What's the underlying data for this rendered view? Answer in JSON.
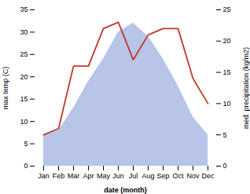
{
  "chart_data": {
    "type": "line",
    "categories": [
      "Jan",
      "Feb",
      "Mar",
      "Apr",
      "May",
      "Jun",
      "Jul",
      "Aug",
      "Sep",
      "Oct",
      "Nov",
      "Dec"
    ],
    "xlabel": "date (month)",
    "ylabel": "max temp (C)",
    "y2label": "med. precipitation (kg/m2)",
    "series": [
      {
        "type": "area",
        "color": "#b8c4e8",
        "values": [
          7,
          8,
          13,
          19,
          24,
          30,
          32,
          29,
          24,
          18,
          11,
          7
        ]
      },
      {
        "type": "line",
        "color": "#c0392b",
        "axis": "y2",
        "values": [
          5,
          6,
          16,
          16,
          22,
          23,
          17,
          21,
          22,
          22,
          14,
          10
        ]
      }
    ],
    "ylim": [
      0,
      35
    ],
    "yticks": [
      0,
      5,
      10,
      15,
      20,
      25,
      30,
      35
    ],
    "y2lim": [
      0,
      25
    ],
    "y2ticks": [
      0,
      5,
      10,
      15,
      20,
      25
    ],
    "grid": false
  }
}
